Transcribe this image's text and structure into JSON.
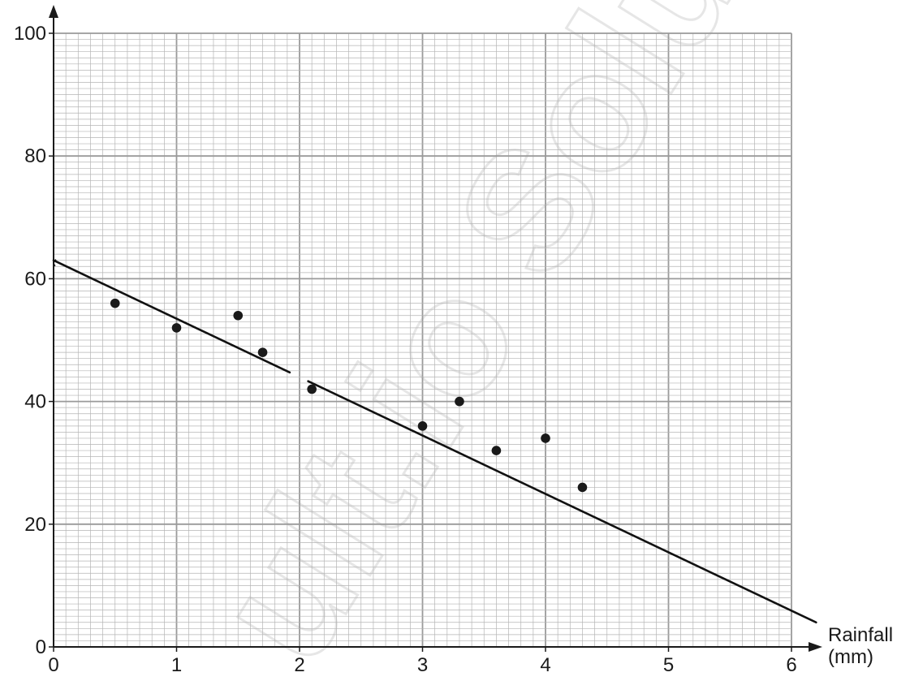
{
  "chart_data": {
    "type": "scatter",
    "title": "",
    "xlabel": "Rainfall\n(mm)",
    "ylabel": "",
    "xlim": [
      0,
      6
    ],
    "ylim": [
      0,
      100
    ],
    "x_ticks": [
      0,
      1,
      2,
      3,
      4,
      5,
      6
    ],
    "y_ticks": [
      0,
      20,
      40,
      60,
      80,
      100
    ],
    "grid": true,
    "legend": "none",
    "series": [
      {
        "points": [
          {
            "x": 0.5,
            "y": 56
          },
          {
            "x": 1.0,
            "y": 52
          },
          {
            "x": 1.5,
            "y": 54
          },
          {
            "x": 1.7,
            "y": 48
          },
          {
            "x": 2.1,
            "y": 42
          },
          {
            "x": 3.0,
            "y": 36
          },
          {
            "x": 3.3,
            "y": 40
          },
          {
            "x": 3.6,
            "y": 32
          },
          {
            "x": 4.0,
            "y": 34
          },
          {
            "x": 4.3,
            "y": 26
          }
        ]
      }
    ],
    "line_of_best_fit": {
      "from": {
        "x": 0,
        "y": 63
      },
      "to": {
        "x": 6.2,
        "y": 4
      },
      "gap_between_x": [
        1.92,
        2.07
      ]
    },
    "colors": {
      "major_grid": "#9a9a9a",
      "minor_grid": "#b5b5b5",
      "axis": "#1a1a1a",
      "points": "#1a1a1a",
      "fit_line": "#111111",
      "watermark": "#e4e4e4"
    }
  },
  "watermark": {
    "text": "ult.io Solutio"
  }
}
